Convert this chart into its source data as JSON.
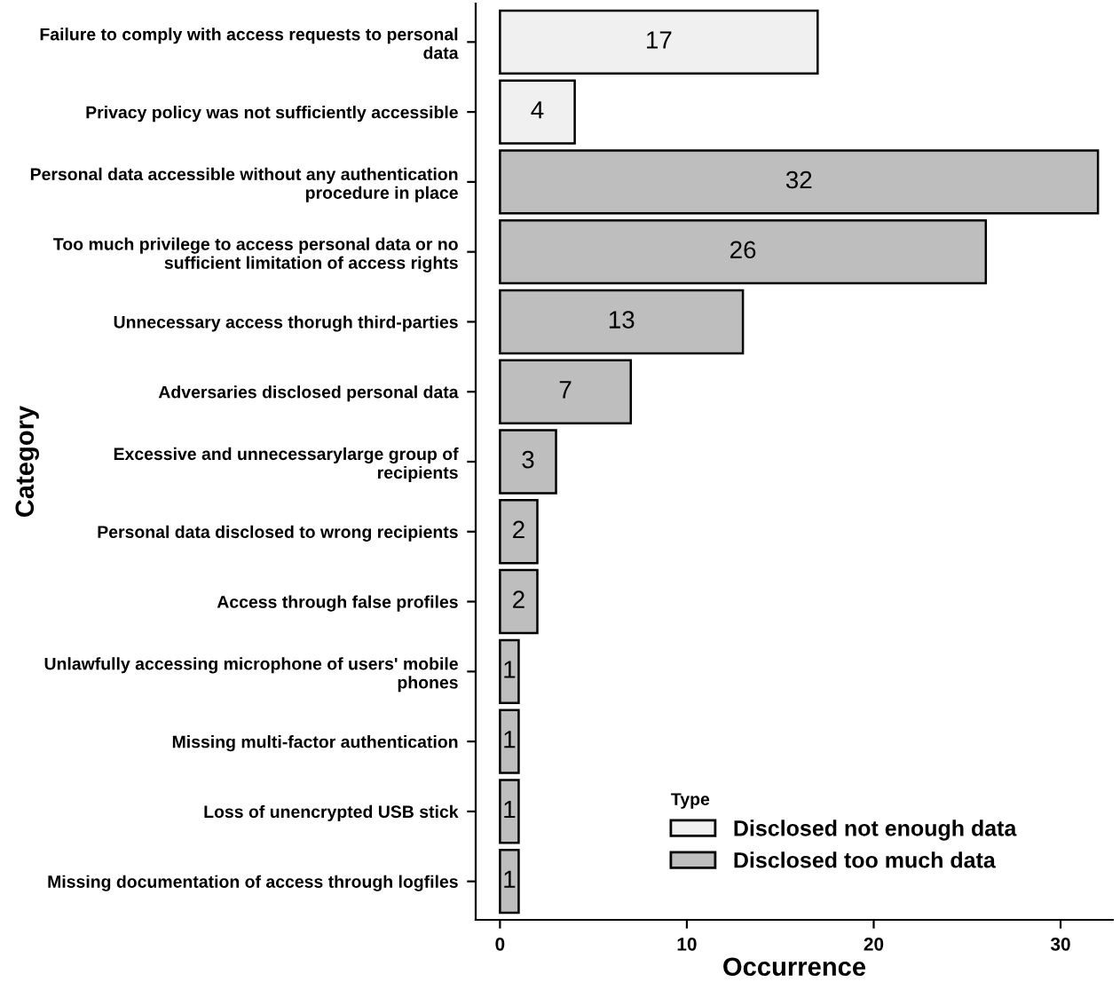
{
  "chart_data": {
    "type": "bar",
    "orientation": "horizontal",
    "xlabel": "Occurrence",
    "ylabel": "Category",
    "legend_title": "Type",
    "legend": "bottom right",
    "grid": false,
    "data_labels": true,
    "categories": [
      "Failure to comply with access requests to personal data",
      "Privacy policy was not sufficiently accessible",
      "Personal data accessible without any authentication procedure in place",
      "Too much privilege to access personal data or no sufficient limitation of access rights",
      "Unnecessary access thorugh third-parties",
      "Adversaries disclosed personal data",
      "Excessive and unnecessarylarge group of recipients",
      "Personal data disclosed to wrong recipients",
      "Access through false profiles",
      "Unlawfully accessing microphone of users' mobile phones",
      "Missing multi-factor authentication",
      "Loss of unencrypted USB stick",
      "Missing documentation of access through logfiles"
    ],
    "series": [
      {
        "name": "Disclosed not enough data",
        "color": "#f0f0f0",
        "values": [
          17,
          4,
          null,
          null,
          null,
          null,
          null,
          null,
          null,
          null,
          null,
          null,
          null
        ]
      },
      {
        "name": "Disclosed too much data",
        "color": "#bebebe",
        "values": [
          null,
          null,
          32,
          26,
          13,
          7,
          3,
          2,
          2,
          1,
          1,
          1,
          1
        ]
      }
    ],
    "xlim": [
      -1.3,
      32.8
    ],
    "xticks": [
      0,
      10,
      20,
      30
    ]
  }
}
